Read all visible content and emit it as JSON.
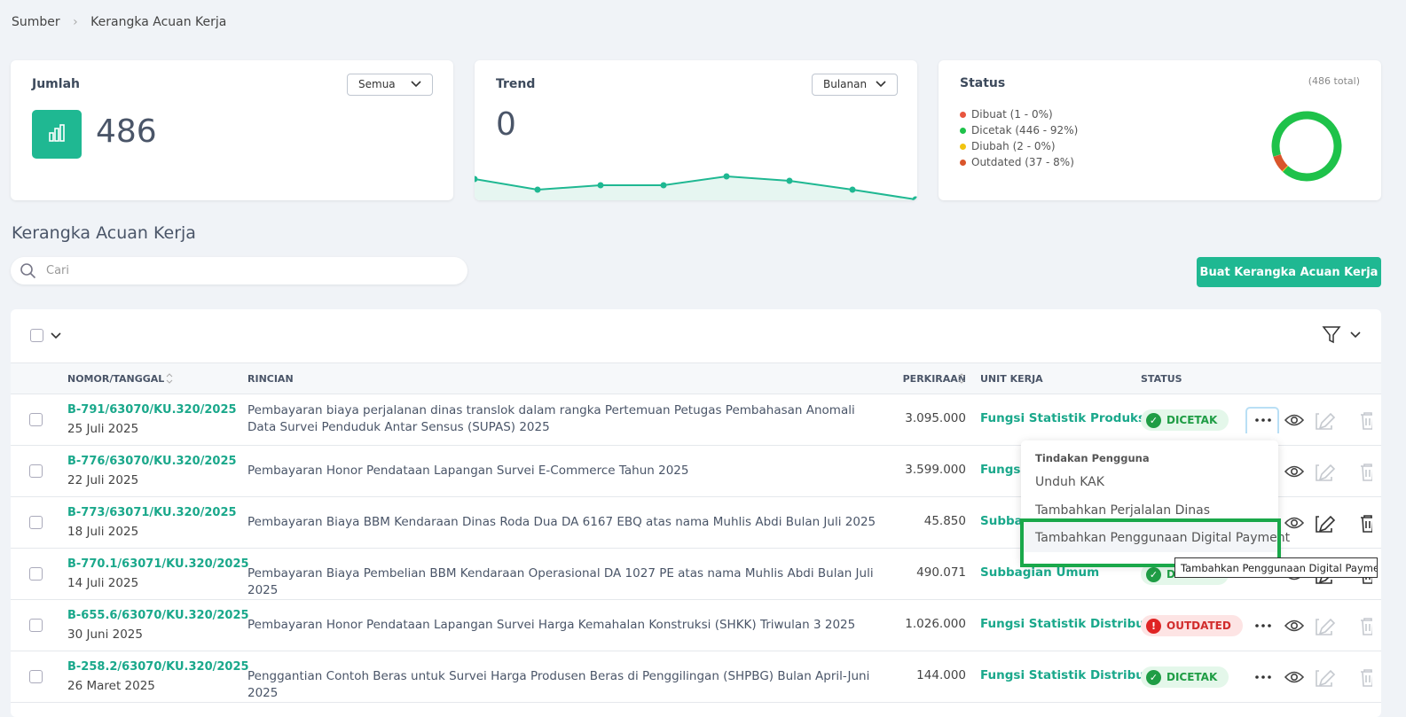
{
  "breadcrumb": [
    "Sumber",
    "Kerangka Acuan Kerja"
  ],
  "cards": {
    "jumlah": {
      "title": "Jumlah",
      "filter": "Semua",
      "value": "486"
    },
    "trend": {
      "title": "Trend",
      "filter": "Bulanan",
      "value": "0",
      "points": [
        23,
        11,
        16,
        16,
        26,
        21,
        11,
        0
      ]
    },
    "status": {
      "title": "Status",
      "total": "(486 total)",
      "items": [
        {
          "label": "Dibuat (1 - 0%)",
          "value": 1,
          "color": "#e8553e"
        },
        {
          "label": "Dicetak (446 - 92%)",
          "value": 446,
          "color": "#1ec24a"
        },
        {
          "label": "Diubah (2 - 0%)",
          "value": 2,
          "color": "#f1c40f"
        },
        {
          "label": "Outdated (37 - 8%)",
          "value": 37,
          "color": "#d9552b"
        }
      ]
    }
  },
  "section_title": "Kerangka Acuan Kerja",
  "search_placeholder": "Cari",
  "create_button": "Buat Kerangka Acuan Kerja",
  "table": {
    "headers": [
      "NOMOR/TANGGAL",
      "RINCIAN",
      "PERKIRAAN",
      "UNIT KERJA",
      "STATUS"
    ],
    "rows": [
      {
        "nomor": "B-791/63070/KU.320/2025",
        "tanggal": "25 Juli 2025",
        "rincian": "Pembayaran biaya perjalanan dinas translok dalam rangka Pertemuan Petugas Pembahasan Anomali Data Survei Penduduk Antar Sensus (SUPAS) 2025",
        "perkiraan": "3.095.000",
        "unit": "Fungsi Statistik Produksi",
        "status": "DICETAK"
      },
      {
        "nomor": "B-776/63070/KU.320/2025",
        "tanggal": "22 Juli 2025",
        "rincian": "Pembayaran Honor Pendataan Lapangan Survei E-Commerce Tahun 2025",
        "perkiraan": "3.599.000",
        "unit": "Fungsi",
        "status": null
      },
      {
        "nomor": "B-773/63071/KU.320/2025",
        "tanggal": "18 Juli 2025",
        "rincian": "Pembayaran Biaya BBM Kendaraan Dinas Roda Dua DA 6167 EBQ atas nama Muhlis Abdi Bulan Juli 2025",
        "perkiraan": "45.850",
        "unit": "Subbag",
        "status": null
      },
      {
        "nomor": "B-770.1/63071/KU.320/2025",
        "tanggal": "14 Juli 2025",
        "rincian": "Pembayaran Biaya Pembelian BBM Kendaraan Operasional DA 1027 PE atas nama Muhlis Abdi Bulan Juli 2025",
        "perkiraan": "490.071",
        "unit": "Subbagian Umum",
        "status": "DICETAK"
      },
      {
        "nomor": "B-655.6/63070/KU.320/2025",
        "tanggal": "30 Juni 2025",
        "rincian": "Pembayaran Honor Pendataan Lapangan Survei Harga Kemahalan Konstruksi (SHKK) Triwulan 3 2025",
        "perkiraan": "1.026.000",
        "unit": "Fungsi Statistik Distribusi",
        "status": "OUTDATED"
      },
      {
        "nomor": "B-258.2/63070/KU.320/2025",
        "tanggal": "26 Maret 2025",
        "rincian": "Penggantian Contoh Beras untuk Survei Harga Produsen Beras di Penggilingan (SHPBG) Bulan April-Juni 2025",
        "perkiraan": "144.000",
        "unit": "Fungsi Statistik Distribusi",
        "status": "DICETAK"
      }
    ]
  },
  "menu": {
    "header": "Tindakan Pengguna",
    "items": [
      "Unduh KAK",
      "Tambahkan Perjalalan Dinas",
      "Tambahkan Penggunaan Digital Payment"
    ]
  },
  "tooltip": "Tambahkan Penggunaan Digital Payment"
}
